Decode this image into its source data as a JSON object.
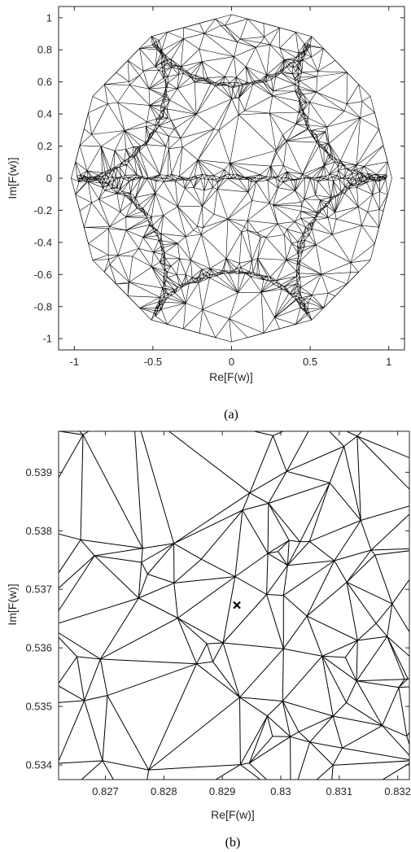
{
  "chart_data": [
    {
      "type": "mesh",
      "panel": "(a)",
      "caption": "(a)",
      "xlabel": "Re[F(w)]",
      "ylabel": "Im[F(w)]",
      "xlim": [
        -1.1,
        1.1
      ],
      "ylim": [
        -1.07,
        1.07
      ],
      "xticks": [
        -1,
        -0.5,
        0,
        0.5,
        1
      ],
      "xtick_labels": [
        "-1",
        "-0.5",
        "0",
        "0.5",
        "1"
      ],
      "yticks": [
        1,
        0.8,
        0.6,
        0.4,
        0.2,
        0,
        -0.2,
        -0.4,
        -0.6,
        -0.8,
        -1
      ],
      "ytick_labels": [
        "1",
        "0.8",
        "0.6",
        "0.4",
        "0.2",
        "0",
        "-0.2",
        "-0.4",
        "-0.6",
        "-0.8",
        "-1"
      ],
      "boundary_polygon_sides": 12,
      "boundary_radius": 1.02,
      "dense_curves": [
        {
          "center_angle_deg": 90,
          "description": "top arc"
        },
        {
          "center_angle_deg": 150,
          "description": "upper-left arc"
        },
        {
          "center_angle_deg": 30,
          "description": "upper-right arc"
        },
        {
          "center_angle_deg": 210,
          "description": "lower-left arc"
        },
        {
          "center_angle_deg": 270,
          "description": "bottom arc"
        },
        {
          "center_angle_deg": 330,
          "description": "lower-right arc"
        }
      ],
      "dense_segment": {
        "x": [
          -1.0,
          1.0
        ],
        "y": [
          0,
          0
        ]
      },
      "grid": false
    },
    {
      "type": "mesh",
      "panel": "(b)",
      "caption": "(b)",
      "xlabel": "Re[F(w)]",
      "ylabel": "Im[F(w)]",
      "xlim": [
        0.8262,
        0.8322
      ],
      "ylim": [
        0.53375,
        0.5397
      ],
      "xticks": [
        0.827,
        0.828,
        0.829,
        0.83,
        0.831,
        0.832
      ],
      "xtick_labels": [
        "0.827",
        "0.828",
        "0.829",
        "0.83",
        "0.831",
        "0.832"
      ],
      "yticks": [
        0.539,
        0.538,
        0.537,
        0.536,
        0.535,
        0.534
      ],
      "ytick_labels": [
        "0.539",
        "0.538",
        "0.537",
        "0.536",
        "0.535",
        "0.534"
      ],
      "marker": {
        "x": 0.82925,
        "y": 0.53673,
        "symbol": "x"
      },
      "grid": false
    }
  ]
}
